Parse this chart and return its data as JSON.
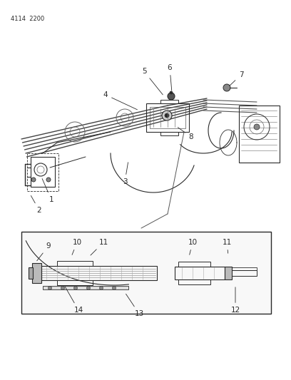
{
  "header_text": "4114  2200",
  "bg_color": "#ffffff",
  "dk": "#2a2a2a",
  "gray": "#888888",
  "lgray": "#bbbbbb",
  "fig_width": 4.08,
  "fig_height": 5.33,
  "dpi": 100
}
